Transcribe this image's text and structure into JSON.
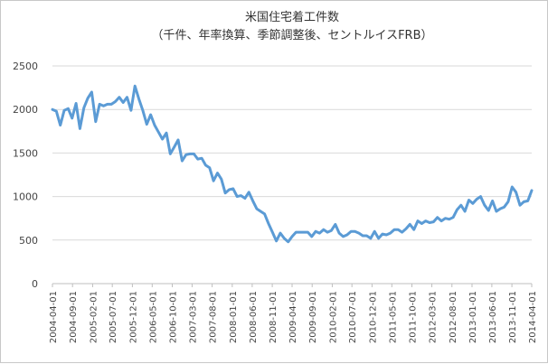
{
  "chart_data": {
    "type": "line",
    "title": "米国住宅着工件数",
    "subtitle": "（千件、年率換算、季節調整後、セントルイスFRB）",
    "xlabel": "",
    "ylabel": "",
    "ylim": [
      0,
      2500
    ],
    "y_ticks": [
      0,
      500,
      1000,
      1500,
      2000,
      2500
    ],
    "grid": "horizontal",
    "legend": "none",
    "line_color": "#5b9bd5",
    "x_tick_labels": [
      "2004-04-01",
      "2004-09-01",
      "2005-02-01",
      "2005-07-01",
      "2005-12-01",
      "2006-05-01",
      "2006-10-01",
      "2007-03-01",
      "2007-08-01",
      "2008-01-01",
      "2008-06-01",
      "2008-11-01",
      "2009-04-01",
      "2009-09-01",
      "2010-02-01",
      "2010-07-01",
      "2010-12-01",
      "2011-05-01",
      "2011-10-01",
      "2012-03-01",
      "2012-08-01",
      "2013-01-01",
      "2013-06-01",
      "2013-11-01",
      "2014-04-01"
    ],
    "x_start": "2004-04-01",
    "x_end": "2014-04-01",
    "series": [
      {
        "values": [
          2000,
          1980,
          1820,
          1990,
          2010,
          1900,
          2070,
          1780,
          2020,
          2130,
          2200,
          1860,
          2060,
          2040,
          2060,
          2060,
          2090,
          2140,
          2080,
          2140,
          1990,
          2270,
          2120,
          1990,
          1830,
          1940,
          1820,
          1740,
          1660,
          1730,
          1490,
          1570,
          1650,
          1410,
          1480,
          1490,
          1490,
          1430,
          1440,
          1360,
          1330,
          1180,
          1270,
          1200,
          1040,
          1080,
          1090,
          1000,
          1010,
          980,
          1050,
          950,
          860,
          830,
          800,
          690,
          590,
          490,
          580,
          520,
          480,
          540,
          590,
          590,
          590,
          590,
          540,
          600,
          580,
          620,
          590,
          610,
          680,
          580,
          540,
          560,
          600,
          600,
          580,
          550,
          550,
          520,
          600,
          520,
          570,
          560,
          580,
          620,
          620,
          590,
          630,
          680,
          620,
          720,
          690,
          720,
          700,
          710,
          760,
          720,
          750,
          740,
          760,
          850,
          900,
          830,
          960,
          920,
          970,
          1000,
          900,
          840,
          950,
          830,
          860,
          880,
          940,
          1110,
          1050,
          900,
          940,
          950,
          1070
        ]
      }
    ]
  }
}
